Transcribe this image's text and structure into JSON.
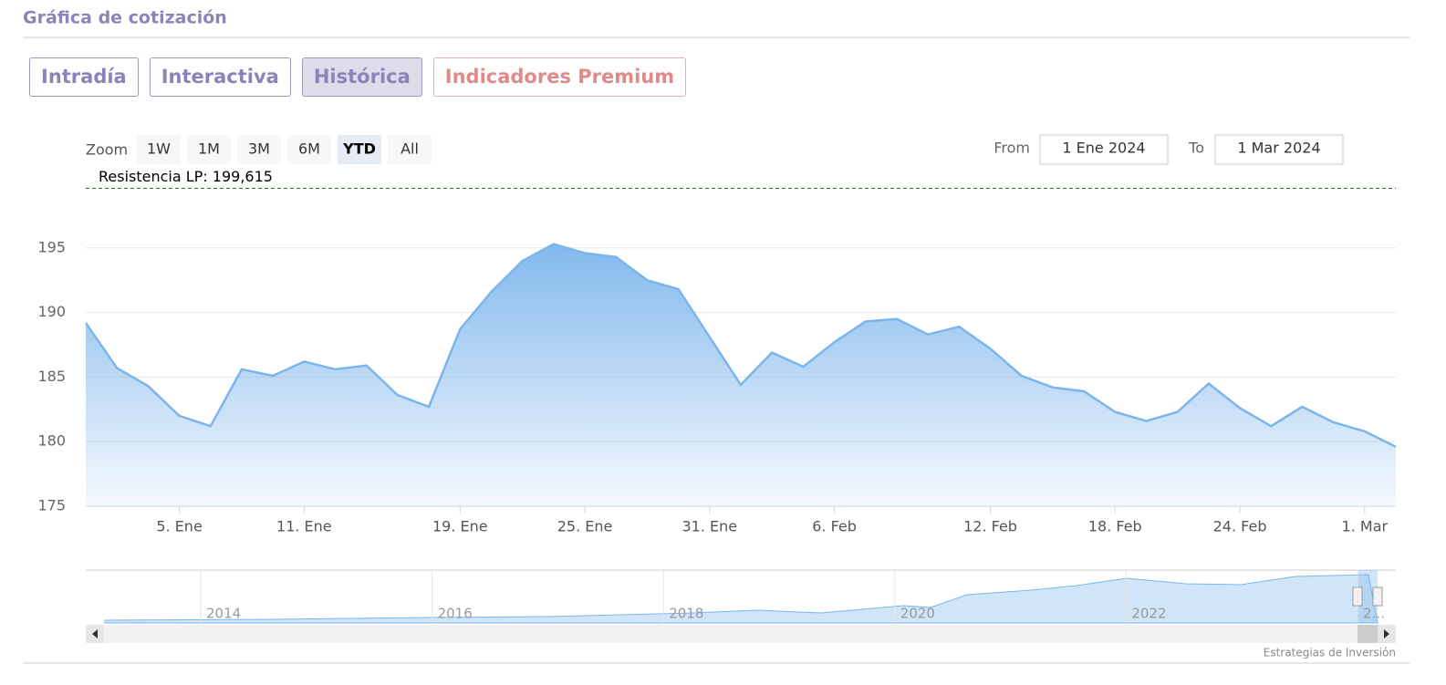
{
  "header": {
    "title": "Gráfica de cotización"
  },
  "tabs": [
    {
      "label": "Intradía",
      "selected": false,
      "premium": false
    },
    {
      "label": "Interactiva",
      "selected": false,
      "premium": false
    },
    {
      "label": "Histórica",
      "selected": true,
      "premium": false
    },
    {
      "label": "Indicadores Premium",
      "selected": false,
      "premium": true
    }
  ],
  "range_selector": {
    "label": "Zoom",
    "buttons": [
      "1W",
      "1M",
      "3M",
      "6M",
      "YTD",
      "All"
    ],
    "selected": 4,
    "from_label": "From",
    "from": "1 Ene 2024",
    "to_label": "To",
    "to": "1 Mar 2024"
  },
  "chart_data": {
    "type": "area",
    "color": "#7cb5ec",
    "categories": [
      null,
      null,
      null,
      "5. Ene",
      null,
      null,
      null,
      "11. Ene",
      null,
      null,
      null,
      null,
      "19. Ene",
      null,
      null,
      null,
      "25. Ene",
      null,
      null,
      null,
      "31. Ene",
      null,
      null,
      null,
      "6. Feb",
      null,
      null,
      null,
      null,
      "12. Feb",
      null,
      null,
      null,
      "18. Feb",
      null,
      null,
      null,
      "24. Feb",
      null,
      null,
      null,
      "1. Mar",
      null
    ],
    "values": [
      189.2,
      185.7,
      184.3,
      182.0,
      181.2,
      185.6,
      185.1,
      186.2,
      185.6,
      185.9,
      183.6,
      182.7,
      188.7,
      191.6,
      194.0,
      195.3,
      194.6,
      194.3,
      192.5,
      191.8,
      188.1,
      184.4,
      186.9,
      185.8,
      187.7,
      189.3,
      189.5,
      188.3,
      188.9,
      187.2,
      185.1,
      184.2,
      183.9,
      182.3,
      181.6,
      182.3,
      184.5,
      182.6,
      181.2,
      182.7,
      181.5,
      180.8,
      179.6
    ],
    "ylim": [
      175,
      200
    ],
    "yticks": [
      175,
      180,
      185,
      190,
      195
    ],
    "grid": true,
    "plot_line": {
      "label": "Resistencia LP: 199,615",
      "value": 199.615,
      "color": "#2e7d32"
    }
  },
  "navigator": {
    "labels": [
      "2014",
      "2016",
      "2018",
      "2020",
      "2022",
      "2..."
    ]
  },
  "credit": "Estrategias de Inversión"
}
